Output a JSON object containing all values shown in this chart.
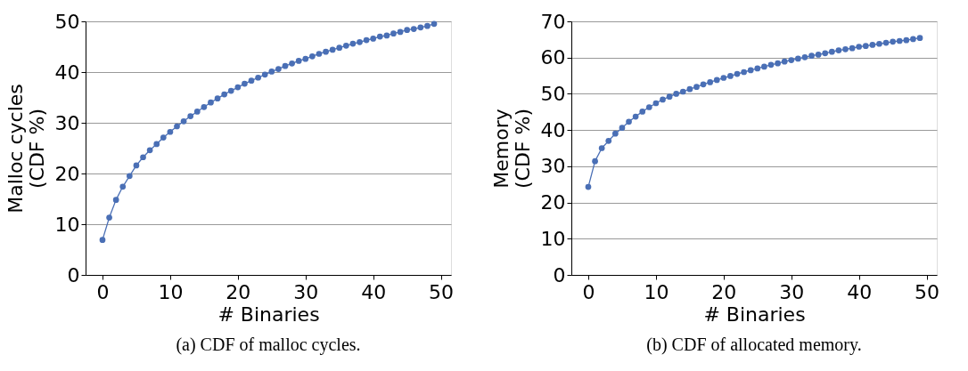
{
  "chart_data": [
    {
      "type": "line",
      "xlabel": "# Binaries",
      "ylabel": "Malloc cycles\n(CDF %)",
      "annotations": [
        "(a) CDF of malloc cycles."
      ],
      "x": [
        0,
        1,
        2,
        3,
        4,
        5,
        6,
        7,
        8,
        9,
        10,
        11,
        12,
        13,
        14,
        15,
        16,
        17,
        18,
        19,
        20,
        21,
        22,
        23,
        24,
        25,
        26,
        27,
        28,
        29,
        30,
        31,
        32,
        33,
        34,
        35,
        36,
        37,
        38,
        39,
        40,
        41,
        42,
        43,
        44,
        45,
        46,
        47,
        48,
        49
      ],
      "series": [
        {
          "color": "#4a6fb5",
          "values": [
            6.9,
            11.3,
            14.8,
            17.4,
            19.5,
            21.6,
            23.2,
            24.6,
            25.8,
            27.1,
            28.2,
            29.3,
            30.3,
            31.3,
            32.2,
            33.1,
            34.0,
            34.8,
            35.6,
            36.3,
            37.0,
            37.7,
            38.3,
            38.9,
            39.5,
            40.1,
            40.6,
            41.2,
            41.7,
            42.2,
            42.6,
            43.1,
            43.6,
            44.0,
            44.4,
            44.8,
            45.2,
            45.6,
            45.9,
            46.3,
            46.6,
            47.0,
            47.2,
            47.6,
            47.9,
            48.3,
            48.5,
            48.8,
            49.1,
            49.5
          ]
        }
      ],
      "xlim": [
        -2.5,
        51.5
      ],
      "xticks": [
        0,
        10,
        20,
        30,
        40,
        50
      ],
      "ylim": [
        0,
        50
      ],
      "yticks": [
        0,
        10,
        20,
        30,
        40,
        50
      ],
      "grid": "y",
      "marker": "circle",
      "line_style": "solid"
    },
    {
      "type": "line",
      "xlabel": "# Binaries",
      "ylabel": "Memory\n(CDF %)",
      "annotations": [
        "(b) CDF of allocated memory."
      ],
      "x": [
        0,
        1,
        2,
        3,
        4,
        5,
        6,
        7,
        8,
        9,
        10,
        11,
        12,
        13,
        14,
        15,
        16,
        17,
        18,
        19,
        20,
        21,
        22,
        23,
        24,
        25,
        26,
        27,
        28,
        29,
        30,
        31,
        32,
        33,
        34,
        35,
        36,
        37,
        38,
        39,
        40,
        41,
        42,
        43,
        44,
        45,
        46,
        47,
        48,
        49
      ],
      "series": [
        {
          "color": "#4a6fb5",
          "values": [
            24.3,
            31.4,
            35.0,
            37.0,
            39.0,
            40.6,
            42.3,
            43.7,
            45.1,
            46.3,
            47.4,
            48.4,
            49.2,
            50.0,
            50.6,
            51.3,
            51.9,
            52.6,
            53.2,
            53.8,
            54.4,
            54.9,
            55.5,
            56.0,
            56.5,
            57.0,
            57.5,
            58.0,
            58.4,
            58.9,
            59.3,
            59.7,
            60.1,
            60.5,
            60.8,
            61.2,
            61.6,
            62.0,
            62.3,
            62.6,
            63.0,
            63.2,
            63.5,
            63.8,
            64.1,
            64.4,
            64.6,
            64.8,
            65.1,
            65.4
          ]
        }
      ],
      "xlim": [
        -2.5,
        51.5
      ],
      "xticks": [
        0,
        10,
        20,
        30,
        40,
        50
      ],
      "ylim": [
        0,
        70
      ],
      "yticks": [
        0,
        10,
        20,
        30,
        40,
        50,
        60,
        70
      ],
      "grid": "y",
      "marker": "circle",
      "line_style": "solid"
    }
  ]
}
